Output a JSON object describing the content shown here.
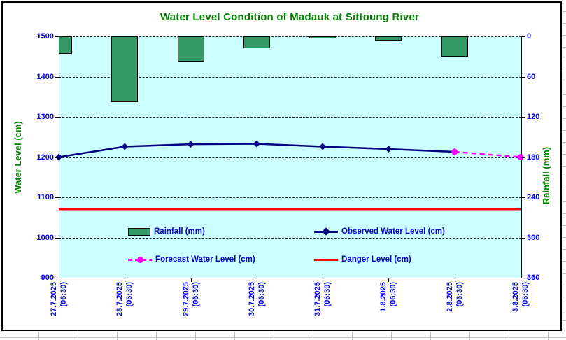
{
  "sheet": {
    "note": "chart embedded on spreadsheet grid"
  },
  "colors": {
    "plot_bg": "#CCFFFF",
    "rainfall_bar": "#339966",
    "observed_line": "#000080",
    "forecast_line": "#FF00FF",
    "danger_line": "#FF0000",
    "title_text": "#008000",
    "tick_text": "#0000FF",
    "legend_text": "#0000CC"
  },
  "chart_data": {
    "type": "bar+line combo",
    "title": "Water Level Condition of Madauk at Sittoung River",
    "categories": [
      {
        "date": "27.7.2025",
        "time": "(06:30)"
      },
      {
        "date": "28.7.2025",
        "time": "(06:30)"
      },
      {
        "date": "29.7.2025",
        "time": "(06:30)"
      },
      {
        "date": "30.7.2025",
        "time": "(06:30)"
      },
      {
        "date": "31.7.2025",
        "time": "(06:30)"
      },
      {
        "date": "1.8.2025",
        "time": "(06:30)"
      },
      {
        "date": "2.8.2025",
        "time": "(06:30)"
      },
      {
        "date": "3.8.2025",
        "time": "(06:30)"
      }
    ],
    "left_axis": {
      "label": "Water Level (cm)",
      "min": 900,
      "max": 1500,
      "ticks": [
        1500,
        1400,
        1300,
        1200,
        1100,
        1000,
        900
      ]
    },
    "right_axis": {
      "label": "Rainfall (mm)",
      "min": 0,
      "max": 360,
      "inverted": true,
      "ticks": [
        0,
        60,
        120,
        180,
        240,
        300,
        360
      ]
    },
    "grid": "horizontal dashed",
    "legend_position": "inside lower plot, 2 columns",
    "series": [
      {
        "name": "Rainfall (mm)",
        "type": "bar",
        "axis": "right",
        "values": [
          26,
          98,
          38,
          18,
          3,
          6,
          30,
          null
        ]
      },
      {
        "name": "Observed Water Level (cm)",
        "type": "line",
        "axis": "left",
        "marker": "diamond",
        "values": [
          1200,
          1226,
          1232,
          1233,
          1226,
          1220,
          1213,
          null
        ]
      },
      {
        "name": "Forecast Water Level (cm)",
        "type": "line-dashed",
        "axis": "left",
        "marker": "circle",
        "values": [
          null,
          null,
          null,
          null,
          null,
          null,
          1213,
          1200
        ]
      },
      {
        "name": "Danger Level (cm)",
        "type": "hline",
        "axis": "left",
        "value": 1070
      }
    ]
  }
}
